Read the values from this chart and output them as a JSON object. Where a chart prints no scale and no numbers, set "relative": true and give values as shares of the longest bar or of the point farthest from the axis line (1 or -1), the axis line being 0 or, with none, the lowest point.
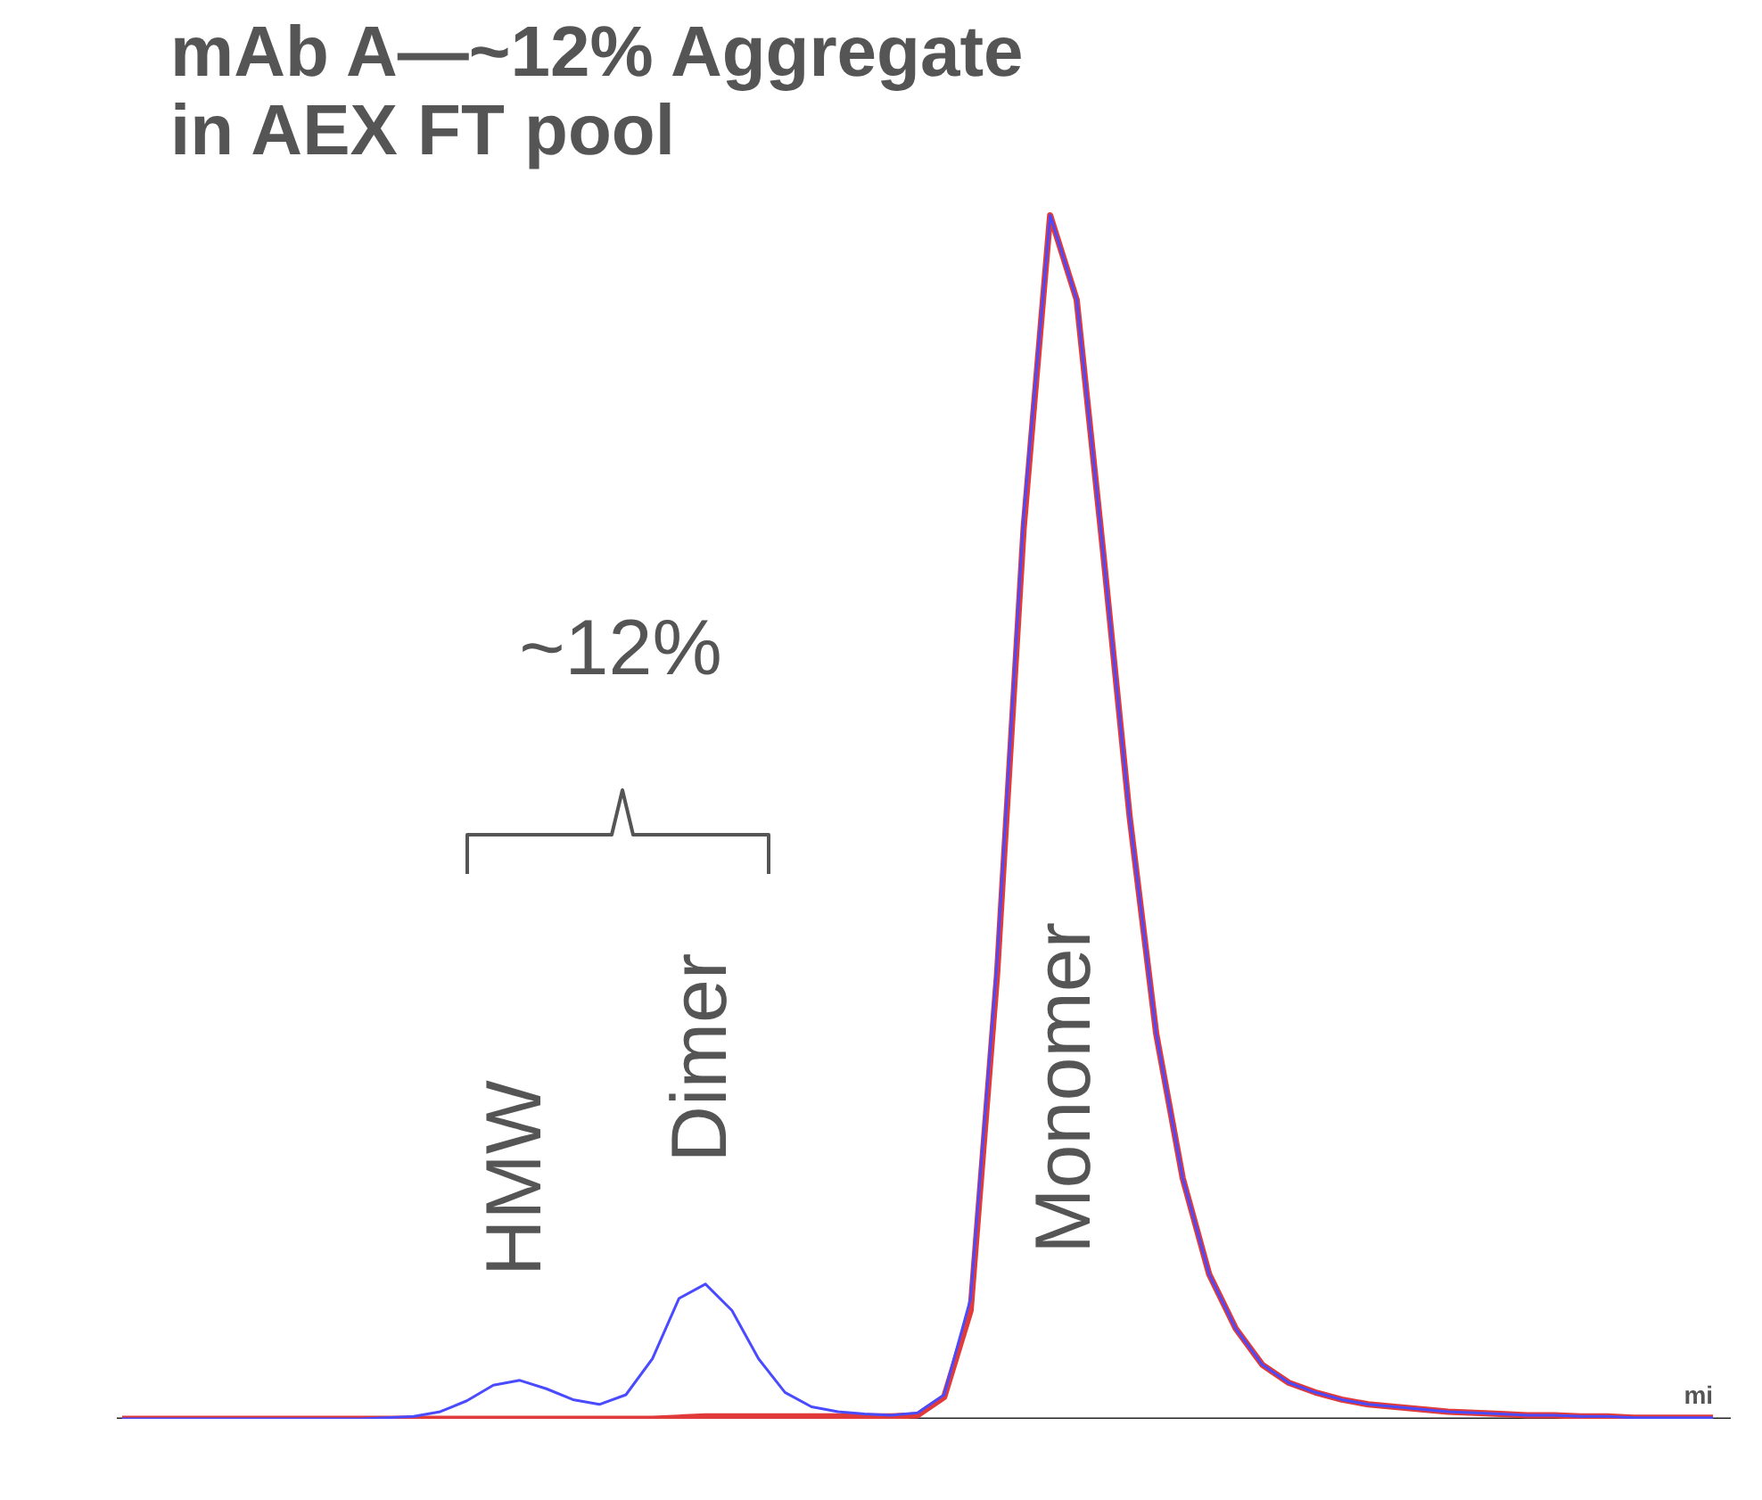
{
  "chart_data": {
    "type": "line",
    "title": "mAb A—~12% Aggregate\nin AEX FT pool",
    "xlabel": "mi",
    "relative": true,
    "grid": false,
    "marker": "none",
    "line_style": "solid",
    "categories": [
      null,
      null,
      null,
      null,
      null,
      null,
      null,
      null,
      null,
      null,
      null,
      null,
      null,
      null,
      null,
      null,
      null,
      null,
      null,
      null,
      null,
      null,
      null,
      null,
      null,
      null,
      null,
      null,
      null,
      null,
      null,
      null,
      null,
      null,
      null,
      null,
      null,
      null,
      null,
      null,
      null,
      null,
      null,
      null,
      null,
      null,
      null,
      null,
      null,
      null,
      null,
      null,
      null,
      null,
      null,
      null,
      null,
      null,
      null,
      null,
      null
    ],
    "series": [
      {
        "color": "#e03a3a",
        "values": [
          0,
          0,
          0,
          0,
          0,
          0,
          0,
          0,
          0,
          0,
          0,
          0,
          0,
          0,
          0,
          0,
          0,
          0,
          0,
          0,
          0,
          0.001,
          0.002,
          0.002,
          0.002,
          0.002,
          0.002,
          0.002,
          0.002,
          0.002,
          0.003,
          0.018,
          0.09,
          0.37,
          0.74,
          1.0,
          0.93,
          0.72,
          0.5,
          0.32,
          0.2,
          0.12,
          0.075,
          0.045,
          0.03,
          0.022,
          0.016,
          0.012,
          0.01,
          0.008,
          0.006,
          0.005,
          0.004,
          0.003,
          0.003,
          0.002,
          0.002,
          0.001,
          0.001,
          0.001,
          0.001
        ]
      },
      {
        "color": "#4a4aff",
        "values": [
          0,
          0,
          0,
          0,
          0,
          0,
          0,
          0,
          0,
          0,
          0.001,
          0.002,
          0.006,
          0.015,
          0.028,
          0.032,
          0.025,
          0.016,
          0.012,
          0.02,
          0.05,
          0.1,
          0.112,
          0.09,
          0.05,
          0.022,
          0.01,
          0.006,
          0.004,
          0.003,
          0.005,
          0.02,
          0.1,
          0.38,
          0.75,
          1.0,
          0.93,
          0.72,
          0.5,
          0.32,
          0.2,
          0.12,
          0.075,
          0.045,
          0.03,
          0.022,
          0.016,
          0.012,
          0.01,
          0.008,
          0.006,
          0.005,
          0.004,
          0.003,
          0.003,
          0.002,
          0.002,
          0.001,
          0.001,
          0.001,
          0.001
        ]
      }
    ],
    "annotations": [
      "~12%",
      "HMW",
      "Dimer",
      "Monomer"
    ]
  }
}
